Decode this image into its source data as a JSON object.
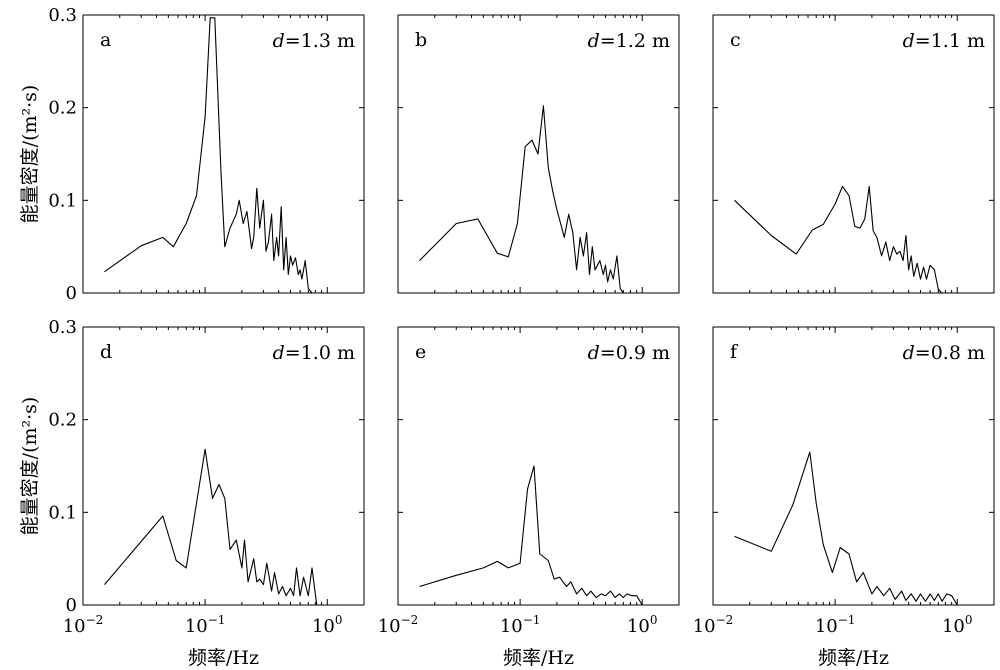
{
  "figure": {
    "xlabel": "频率/Hz",
    "ylabel": "能量密度/(m²·s)"
  },
  "chart_data": [
    {
      "type": "line",
      "panel": "a",
      "label": "d=1.3 m",
      "xscale": "log",
      "xlim": [
        0.01,
        2.0
      ],
      "ylim": [
        0,
        0.3
      ],
      "xticks": [
        "10⁻²",
        "10⁻¹",
        "10⁰"
      ],
      "yticks": [
        "0",
        "0.1",
        "0.2",
        "0.3"
      ],
      "x": [
        0.015,
        0.03,
        0.045,
        0.055,
        0.07,
        0.085,
        0.1,
        0.11,
        0.12,
        0.135,
        0.145,
        0.16,
        0.18,
        0.19,
        0.205,
        0.22,
        0.24,
        0.25,
        0.265,
        0.28,
        0.3,
        0.315,
        0.33,
        0.35,
        0.365,
        0.385,
        0.4,
        0.42,
        0.44,
        0.46,
        0.48,
        0.5,
        0.52,
        0.55,
        0.58,
        0.6,
        0.62,
        0.66,
        0.7,
        0.75,
        0.82,
        1.0,
        1.5,
        2.0
      ],
      "y": [
        0.023,
        0.051,
        0.06,
        0.05,
        0.075,
        0.105,
        0.19,
        0.297,
        0.297,
        0.13,
        0.05,
        0.07,
        0.085,
        0.1,
        0.075,
        0.088,
        0.048,
        0.06,
        0.113,
        0.07,
        0.1,
        0.045,
        0.055,
        0.085,
        0.035,
        0.06,
        0.04,
        0.093,
        0.025,
        0.06,
        0.02,
        0.04,
        0.03,
        0.038,
        0.02,
        0.025,
        0.015,
        0.035,
        0.005,
        0,
        0,
        0,
        0,
        0
      ]
    },
    {
      "type": "line",
      "panel": "b",
      "label": "d=1.2 m",
      "xscale": "log",
      "xlim": [
        0.01,
        2.0
      ],
      "ylim": [
        0,
        0.3
      ],
      "xticks": [
        "10⁻²",
        "10⁻¹",
        "10⁰"
      ],
      "yticks": [
        "0",
        "0.1",
        "0.2",
        "0.3"
      ],
      "x": [
        0.015,
        0.03,
        0.045,
        0.065,
        0.08,
        0.095,
        0.11,
        0.125,
        0.14,
        0.155,
        0.17,
        0.185,
        0.2,
        0.23,
        0.25,
        0.27,
        0.29,
        0.31,
        0.33,
        0.35,
        0.37,
        0.39,
        0.41,
        0.43,
        0.45,
        0.48,
        0.5,
        0.52,
        0.55,
        0.58,
        0.62,
        0.66,
        0.7,
        0.75,
        0.82,
        1.0,
        1.5,
        2.0
      ],
      "y": [
        0.035,
        0.075,
        0.08,
        0.043,
        0.039,
        0.075,
        0.158,
        0.165,
        0.15,
        0.202,
        0.135,
        0.11,
        0.09,
        0.06,
        0.085,
        0.065,
        0.025,
        0.06,
        0.04,
        0.065,
        0.02,
        0.05,
        0.025,
        0.03,
        0.035,
        0.02,
        0.03,
        0.012,
        0.025,
        0.015,
        0.04,
        0.005,
        0,
        0,
        0,
        0,
        0,
        0
      ]
    },
    {
      "type": "line",
      "panel": "c",
      "label": "d=1.1 m",
      "xscale": "log",
      "xlim": [
        0.01,
        2.0
      ],
      "ylim": [
        0,
        0.3
      ],
      "xticks": [
        "10⁻²",
        "10⁻¹",
        "10⁰"
      ],
      "yticks": [
        "0",
        "0.1",
        "0.2",
        "0.3"
      ],
      "x": [
        0.015,
        0.03,
        0.048,
        0.065,
        0.08,
        0.1,
        0.115,
        0.13,
        0.145,
        0.16,
        0.175,
        0.19,
        0.205,
        0.22,
        0.24,
        0.26,
        0.28,
        0.3,
        0.32,
        0.34,
        0.36,
        0.38,
        0.4,
        0.42,
        0.44,
        0.47,
        0.5,
        0.53,
        0.56,
        0.6,
        0.65,
        0.7,
        0.75,
        0.82,
        1.0,
        1.5,
        2.0
      ],
      "y": [
        0.1,
        0.062,
        0.042,
        0.068,
        0.074,
        0.096,
        0.115,
        0.105,
        0.072,
        0.07,
        0.08,
        0.115,
        0.067,
        0.06,
        0.04,
        0.055,
        0.035,
        0.05,
        0.042,
        0.045,
        0.035,
        0.062,
        0.025,
        0.04,
        0.018,
        0.032,
        0.015,
        0.028,
        0.015,
        0.03,
        0.025,
        0.004,
        0,
        0,
        0,
        0,
        0
      ]
    },
    {
      "type": "line",
      "panel": "d",
      "label": "d=1.0 m",
      "xscale": "log",
      "xlim": [
        0.01,
        2.0
      ],
      "ylim": [
        0,
        0.3
      ],
      "xticks": [
        "10⁻²",
        "10⁻¹",
        "10⁰"
      ],
      "yticks": [
        "0",
        "0.1",
        "0.2",
        "0.3"
      ],
      "x": [
        0.015,
        0.045,
        0.058,
        0.07,
        0.085,
        0.1,
        0.115,
        0.13,
        0.145,
        0.16,
        0.18,
        0.2,
        0.21,
        0.225,
        0.25,
        0.265,
        0.28,
        0.3,
        0.32,
        0.35,
        0.37,
        0.4,
        0.43,
        0.46,
        0.5,
        0.53,
        0.56,
        0.6,
        0.64,
        0.7,
        0.75,
        0.82,
        1.0,
        1.5,
        2.0
      ],
      "y": [
        0.022,
        0.096,
        0.048,
        0.04,
        0.11,
        0.168,
        0.115,
        0.13,
        0.115,
        0.06,
        0.07,
        0.04,
        0.07,
        0.025,
        0.05,
        0.025,
        0.028,
        0.022,
        0.045,
        0.015,
        0.035,
        0.012,
        0.02,
        0.01,
        0.018,
        0.01,
        0.04,
        0.01,
        0.03,
        0.01,
        0.04,
        0,
        0,
        0,
        0
      ]
    },
    {
      "type": "line",
      "panel": "e",
      "label": "d=0.9 m",
      "xscale": "log",
      "xlim": [
        0.01,
        2.0
      ],
      "ylim": [
        0,
        0.3
      ],
      "xticks": [
        "10⁻²",
        "10⁻¹",
        "10⁰"
      ],
      "yticks": [
        "0",
        "0.1",
        "0.2",
        "0.3"
      ],
      "x": [
        0.015,
        0.03,
        0.05,
        0.065,
        0.08,
        0.1,
        0.115,
        0.13,
        0.145,
        0.17,
        0.19,
        0.21,
        0.24,
        0.26,
        0.29,
        0.32,
        0.35,
        0.38,
        0.42,
        0.46,
        0.5,
        0.55,
        0.6,
        0.65,
        0.7,
        0.75,
        0.82,
        0.9,
        1.0,
        1.5,
        2.0
      ],
      "y": [
        0.02,
        0.032,
        0.04,
        0.047,
        0.04,
        0.045,
        0.125,
        0.15,
        0.055,
        0.048,
        0.028,
        0.03,
        0.02,
        0.025,
        0.012,
        0.018,
        0.01,
        0.015,
        0.008,
        0.012,
        0.01,
        0.015,
        0.008,
        0.012,
        0.008,
        0.012,
        0.01,
        0.01,
        0,
        0,
        0
      ]
    },
    {
      "type": "line",
      "panel": "f",
      "label": "d=0.8 m",
      "xscale": "log",
      "xlim": [
        0.01,
        2.0
      ],
      "ylim": [
        0,
        0.3
      ],
      "xticks": [
        "10⁻²",
        "10⁻¹",
        "10⁰"
      ],
      "yticks": [
        "0",
        "0.1",
        "0.2",
        "0.3"
      ],
      "x": [
        0.015,
        0.03,
        0.045,
        0.062,
        0.07,
        0.08,
        0.095,
        0.11,
        0.13,
        0.15,
        0.17,
        0.2,
        0.22,
        0.25,
        0.28,
        0.31,
        0.35,
        0.38,
        0.42,
        0.46,
        0.5,
        0.55,
        0.6,
        0.65,
        0.7,
        0.75,
        0.82,
        0.9,
        1.0,
        1.5,
        2.0
      ],
      "y": [
        0.074,
        0.058,
        0.108,
        0.165,
        0.11,
        0.065,
        0.035,
        0.062,
        0.055,
        0.025,
        0.035,
        0.012,
        0.02,
        0.01,
        0.018,
        0.006,
        0.015,
        0.005,
        0.012,
        0.004,
        0.012,
        0.004,
        0.012,
        0.005,
        0.012,
        0.004,
        0.012,
        0.01,
        0,
        0,
        0
      ]
    }
  ]
}
